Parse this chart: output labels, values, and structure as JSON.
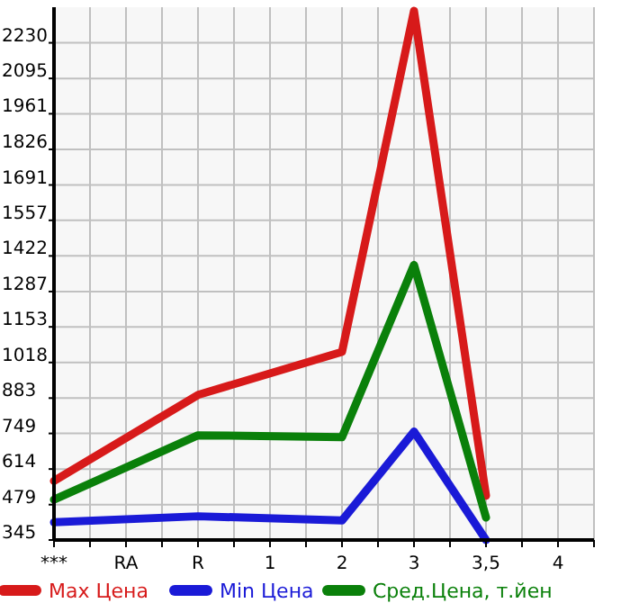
{
  "chart_data": {
    "type": "line",
    "categories": [
      "***",
      "RA",
      "R",
      "1",
      "2",
      "3",
      "3,5",
      "4"
    ],
    "series": [
      {
        "name": "Max Цена",
        "color": "#d71a1a",
        "values": [
          569,
          null,
          895,
          null,
          1058,
          2351,
          513,
          null
        ]
      },
      {
        "name": "Min Цена",
        "color": "#1a1ad7",
        "values": [
          412,
          null,
          435,
          null,
          419,
          756,
          345,
          null
        ]
      },
      {
        "name": "Сред.Цена, т.йен",
        "color": "#0a800a",
        "values": [
          498,
          null,
          742,
          null,
          735,
          1388,
          430,
          null
        ]
      }
    ],
    "ylim": [
      345,
      2365
    ],
    "yticks": [
      345,
      479,
      614,
      749,
      883,
      1018,
      1153,
      1287,
      1422,
      1557,
      1691,
      1826,
      1961,
      2095,
      2230
    ],
    "grid": true,
    "legend": "bottom",
    "marker": "none",
    "line_style": "solid"
  }
}
